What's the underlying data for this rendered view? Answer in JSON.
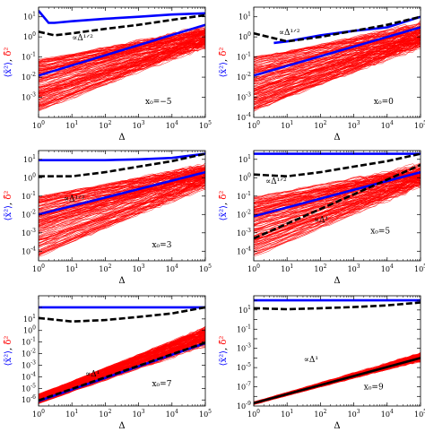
{
  "chart_data": [
    {
      "type": "line",
      "x_scale": "log",
      "y_scale": "log",
      "xlim": [
        1,
        100000
      ],
      "ylim": [
        0.0001,
        30
      ],
      "xlabel": "Δ",
      "ylabel": {
        "blue": "⟨x̄²⟩",
        "sep": ", ",
        "red": "δ̄²"
      },
      "xticks": [
        "0",
        "1",
        "2",
        "3",
        "4",
        "5"
      ],
      "yticks": [
        "-3",
        "-2",
        "-1",
        "0",
        "1"
      ],
      "annotations": [
        {
          "text": "x₀=−5"
        },
        {
          "text": "∝Δ¹ᐟ²"
        }
      ],
      "series": [
        {
          "color": "#ff0000",
          "style": "ensemble of individual trajectories",
          "x": [
            1,
            100000
          ],
          "y_min": [
            0.0002,
            0.3
          ],
          "y_max": [
            0.08,
            3
          ]
        },
        {
          "color": "#0000ff",
          "x": [
            1,
            2,
            3,
            10,
            100,
            1000,
            10000,
            100000
          ],
          "y": [
            20,
            5,
            5,
            6,
            8,
            10,
            13,
            15
          ]
        },
        {
          "color": "#000000",
          "style": "dashed",
          "x": [
            1,
            3,
            10,
            100,
            1000,
            10000,
            100000
          ],
          "y": [
            1.8,
            1.2,
            1.5,
            2.5,
            4,
            7,
            12
          ]
        },
        {
          "color": "#0000ff",
          "x": [
            1,
            100000
          ],
          "y": [
            0.012,
            4
          ]
        }
      ]
    },
    {
      "type": "line",
      "x_scale": "log",
      "y_scale": "log",
      "xlim": [
        1,
        100000
      ],
      "ylim": [
        0.0001,
        30
      ],
      "xlabel": "Δ",
      "ylabel": {
        "blue": "⟨x̄²⟩",
        "sep": ", ",
        "red": "δ̄²"
      },
      "xticks": [
        "0",
        "1",
        "2",
        "3",
        "4",
        "5"
      ],
      "yticks": [
        "-4",
        "-3",
        "-2",
        "-1",
        "0",
        "1"
      ],
      "annotations": [
        {
          "text": "x₀=0"
        },
        {
          "text": "∝Δ¹ᐟ²"
        }
      ],
      "series": [
        {
          "color": "#ff0000",
          "style": "ensemble of individual trajectories",
          "x": [
            1,
            100000
          ],
          "y_min": [
            0.0002,
            0.3
          ],
          "y_max": [
            0.1,
            5
          ]
        },
        {
          "color": "#0000ff",
          "x": [
            4,
            10,
            100,
            1000,
            10000,
            100000
          ],
          "y": [
            0.5,
            0.6,
            1.2,
            2,
            3,
            10
          ]
        },
        {
          "color": "#000000",
          "style": "dashed",
          "x": [
            1,
            10,
            100,
            1000,
            10000,
            100000
          ],
          "y": [
            1.5,
            0.6,
            1,
            2,
            4,
            10
          ]
        },
        {
          "color": "#0000ff",
          "x": [
            1,
            100000
          ],
          "y": [
            0.012,
            3
          ]
        }
      ]
    },
    {
      "type": "line",
      "x_scale": "log",
      "y_scale": "log",
      "xlim": [
        1,
        100000
      ],
      "ylim": [
        3e-05,
        30
      ],
      "xlabel": "Δ",
      "ylabel": {
        "blue": "⟨x̄²⟩",
        "sep": ", ",
        "red": "δ̄²"
      },
      "xticks": [
        "0",
        "1",
        "2",
        "3",
        "4",
        "5"
      ],
      "yticks": [
        "-4",
        "-3",
        "-2",
        "-1",
        "0",
        "1"
      ],
      "annotations": [
        {
          "text": "x₀=3"
        },
        {
          "text": "∝Δ¹ᐟ²"
        }
      ],
      "series": [
        {
          "color": "#ff0000",
          "style": "ensemble of individual trajectories",
          "x": [
            1,
            100000
          ],
          "y_min": [
            5e-05,
            0.3
          ],
          "y_max": [
            0.1,
            5
          ]
        },
        {
          "color": "#0000ff",
          "x": [
            1,
            100,
            1000,
            10000,
            100000
          ],
          "y": [
            9,
            9,
            10,
            12,
            20
          ]
        },
        {
          "color": "#000000",
          "style": "dashed",
          "x": [
            1,
            10,
            100,
            1000,
            10000,
            100000
          ],
          "y": [
            1.2,
            1.2,
            2,
            4,
            8,
            20
          ]
        },
        {
          "color": "#0000ff",
          "x": [
            1,
            100000
          ],
          "y": [
            0.01,
            2
          ]
        }
      ]
    },
    {
      "type": "line",
      "x_scale": "log",
      "y_scale": "log",
      "xlim": [
        1,
        100000
      ],
      "ylim": [
        3e-05,
        30
      ],
      "xlabel": "Δ",
      "ylabel": {
        "blue": "⟨x̄²⟩",
        "sep": ", ",
        "red": "δ̄²"
      },
      "xticks": [
        "0",
        "1",
        "2",
        "3",
        "4",
        "5"
      ],
      "yticks": [
        "-4",
        "-3",
        "-2",
        "-1",
        "0",
        "1"
      ],
      "annotations": [
        {
          "text": "x₀=5"
        },
        {
          "text": "∝Δ¹ᐟ²"
        },
        {
          "text": "∝Δ¹"
        }
      ],
      "series": [
        {
          "color": "#ff0000",
          "style": "ensemble of individual trajectories",
          "x": [
            1,
            100000
          ],
          "y_min": [
            5e-05,
            0.3
          ],
          "y_max": [
            0.1,
            5
          ]
        },
        {
          "color": "#0000ff",
          "x": [
            1,
            100000
          ],
          "y": [
            20,
            20
          ]
        },
        {
          "color": "#000000",
          "style": "dashed",
          "x": [
            1,
            10,
            100,
            1000,
            10000,
            100000
          ],
          "y": [
            1.5,
            1.2,
            2,
            4,
            8,
            20
          ]
        },
        {
          "color": "#0000ff",
          "x": [
            1,
            100000
          ],
          "y": [
            0.008,
            2
          ]
        },
        {
          "color": "#000000",
          "style": "dashed",
          "x": [
            1,
            100000
          ],
          "y": [
            0.0005,
            5
          ]
        }
      ]
    },
    {
      "type": "line",
      "x_scale": "log",
      "y_scale": "log",
      "xlim": [
        1,
        100000
      ],
      "ylim": [
        3e-07,
        1000
      ],
      "xlabel": "Δ",
      "ylabel": {
        "blue": "⟨x̄²⟩",
        "sep": ", ",
        "red": "δ̄²"
      },
      "xticks": [
        "0",
        "1",
        "2",
        "3",
        "4",
        "5"
      ],
      "yticks": [
        "-6",
        "-5",
        "-4",
        "-3",
        "-2",
        "-1",
        "0",
        "1"
      ],
      "annotations": [
        {
          "text": "x₀=7"
        },
        {
          "text": "∝Δ¹"
        }
      ],
      "series": [
        {
          "color": "#ff0000",
          "style": "ensemble of individual trajectories",
          "x": [
            1,
            100000
          ],
          "y_min": [
            5e-07,
            0.05
          ],
          "y_max": [
            3e-06,
            2
          ]
        },
        {
          "color": "#0000ff",
          "x": [
            1,
            100000
          ],
          "y": [
            100,
            100
          ]
        },
        {
          "color": "#000000",
          "style": "dashed",
          "x": [
            1,
            10,
            100,
            1000,
            10000,
            100000
          ],
          "y": [
            12,
            6,
            8,
            15,
            30,
            100
          ]
        },
        {
          "color": "#0000ff",
          "x": [
            1,
            100000
          ],
          "y": [
            8e-07,
            0.08
          ]
        },
        {
          "color": "#000000",
          "style": "dashed",
          "x": [
            1,
            100000
          ],
          "y": [
            9e-07,
            0.09
          ]
        }
      ]
    },
    {
      "type": "line",
      "x_scale": "log",
      "y_scale": "log",
      "xlim": [
        1,
        100000
      ],
      "ylim": [
        1e-09,
        300
      ],
      "xlabel": "Δ",
      "ylabel": {
        "blue": "⟨x̄²⟩",
        "sep": ", ",
        "red": "δ̄²"
      },
      "xticks": [
        "0",
        "1",
        "2",
        "3",
        "4",
        "5"
      ],
      "yticks": [
        "-9",
        "-7",
        "-5",
        "-3",
        "-1",
        "1"
      ],
      "annotations": [
        {
          "text": "x₀=9"
        },
        {
          "text": "∝Δ¹"
        }
      ],
      "series": [
        {
          "color": "#ff0000",
          "style": "ensemble of individual trajectories",
          "x": [
            1,
            100000
          ],
          "y_min": [
            1.5e-09,
            5e-05
          ],
          "y_max": [
            2.5e-09,
            0.0003
          ]
        },
        {
          "color": "#0000ff",
          "x": [
            1,
            100000
          ],
          "y": [
            100,
            100
          ]
        },
        {
          "color": "#000000",
          "style": "dashed",
          "x": [
            1,
            10,
            100,
            1000,
            10000,
            100000
          ],
          "y": [
            15,
            12,
            15,
            20,
            30,
            60
          ]
        },
        {
          "color": "#000000",
          "x": [
            1,
            100000
          ],
          "y": [
            2e-09,
            0.0001
          ]
        }
      ]
    }
  ]
}
